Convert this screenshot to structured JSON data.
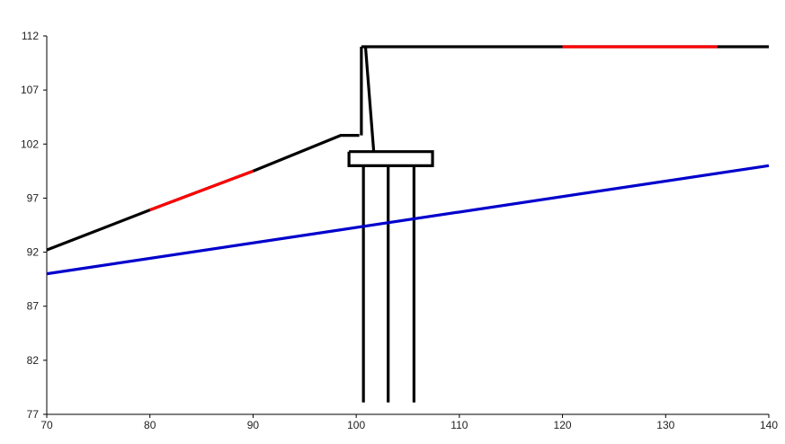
{
  "chart_data": {
    "type": "line",
    "title": "",
    "xlabel": "",
    "ylabel": "",
    "xlim": [
      70,
      140
    ],
    "ylim": [
      77,
      112
    ],
    "grid": false,
    "legend": "none",
    "x_ticks": [
      "70",
      "80",
      "90",
      "100",
      "110",
      "120",
      "130",
      "140"
    ],
    "y_ticks": [
      "112",
      "107",
      "102",
      "97",
      "92",
      "87",
      "82",
      "77"
    ],
    "series": [
      {
        "color": "#000000",
        "points": [
          [
            70,
            92.2
          ],
          [
            80,
            95.9
          ],
          [
            90,
            99.5
          ],
          [
            98.5,
            102.8
          ],
          [
            100.3,
            102.8
          ]
        ]
      },
      {
        "color": "#ff0000",
        "points": [
          [
            80,
            95.9
          ],
          [
            90,
            99.5
          ]
        ]
      },
      {
        "color": "#0000cc",
        "points": [
          [
            70,
            90
          ],
          [
            140,
            100
          ]
        ]
      },
      {
        "color": "#000000",
        "points": [
          [
            100.5,
            102.8
          ],
          [
            100.5,
            111
          ]
        ]
      },
      {
        "color": "#000000",
        "points": [
          [
            100.5,
            111
          ],
          [
            140,
            111
          ]
        ]
      },
      {
        "color": "#ff0000",
        "points": [
          [
            120,
            111
          ],
          [
            135,
            111
          ]
        ]
      },
      {
        "color": "#000000",
        "points": [
          [
            100.9,
            111
          ],
          [
            101.7,
            101.3
          ]
        ]
      },
      {
        "color": "#000000",
        "points": [
          [
            99.3,
            101.3
          ],
          [
            107.4,
            101.3
          ],
          [
            107.4,
            100
          ],
          [
            99.3,
            100
          ],
          [
            99.3,
            101.3
          ]
        ]
      },
      {
        "color": "#000000",
        "points": [
          [
            100.7,
            100
          ],
          [
            100.7,
            78.1
          ]
        ]
      },
      {
        "color": "#000000",
        "points": [
          [
            103.1,
            100
          ],
          [
            103.1,
            78.1
          ]
        ]
      },
      {
        "color": "#000000",
        "points": [
          [
            105.6,
            100
          ],
          [
            105.6,
            78.1
          ]
        ]
      }
    ]
  }
}
